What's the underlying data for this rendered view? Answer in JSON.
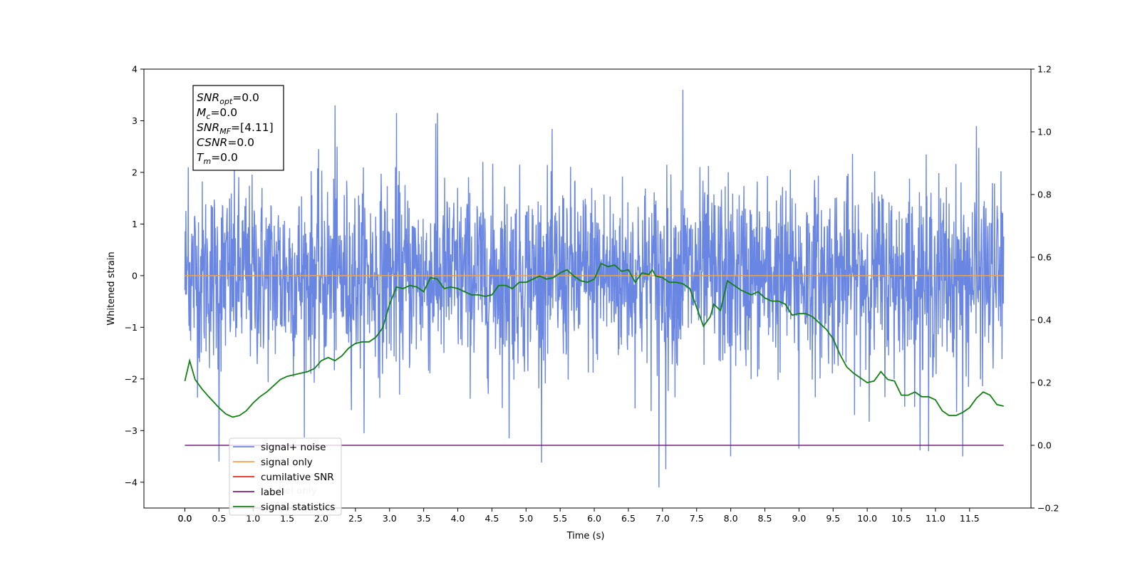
{
  "chart_data": {
    "type": "line",
    "xlabel": "Time (s)",
    "ylabel": "Whitened strain",
    "xlim": [
      -0.6,
      12.4
    ],
    "ylim": [
      -4.5,
      4.0
    ],
    "y2lim": [
      -0.2,
      1.2
    ],
    "grid": false,
    "legend_position": "lower-left",
    "x_ticks": [
      "0.0",
      "0.0",
      "0.5",
      "1.0",
      "1.5",
      "2.0",
      "2.5",
      "3.0",
      "3.5",
      "4.0",
      "4.5",
      "5.0",
      "5.5",
      "6.0",
      "6.5",
      "7.0",
      "7.5",
      "8.0",
      "8.5",
      "9.0",
      "9.5",
      "10.0",
      "10.5",
      "11.0",
      "11.5"
    ],
    "x_tick_values": [
      -0.0001,
      0.0,
      0.5,
      1.0,
      1.5,
      2.0,
      2.5,
      3.0,
      3.5,
      4.0,
      4.5,
      5.0,
      5.5,
      6.0,
      6.5,
      7.0,
      7.5,
      8.0,
      8.5,
      9.0,
      9.5,
      10.0,
      10.5,
      11.0,
      11.5
    ],
    "y_ticks": [
      "4",
      "3",
      "2",
      "1",
      "0",
      "−1",
      "−2",
      "−3",
      "−4"
    ],
    "y_tick_values": [
      4,
      3,
      2,
      1,
      0,
      -1,
      -2,
      -3,
      -4
    ],
    "y2_ticks": [
      "1.2",
      "1.0",
      "0.8",
      "0.6",
      "0.4",
      "0.2",
      "0.0",
      "−0.2"
    ],
    "y2_tick_values": [
      1.2,
      1.0,
      0.8,
      0.6,
      0.4,
      0.2,
      0.0,
      -0.2
    ],
    "annotations": [
      {
        "main": "SNR",
        "sub": "opt",
        "rest": "=0.0"
      },
      {
        "main": "M",
        "sub": "c",
        "rest": "=0.0"
      },
      {
        "main": "SNR",
        "sub": "MF",
        "rest": "=[4.11]"
      },
      {
        "main": "CSNR",
        "sub": "",
        "rest": "=0.0"
      },
      {
        "main": "T",
        "sub": "m",
        "rest": "=0.0"
      }
    ],
    "legend_items": [
      "signal+ noise",
      "signal only",
      "cumilative SNR",
      "label",
      "signal statistics"
    ],
    "legend_ghost": [
      "label only",
      "SNR"
    ],
    "series": [
      {
        "name": "signal+ noise",
        "color": "#6a86e3",
        "axis": "left",
        "x_range": [
          0.0,
          12.0
        ],
        "sample_count": 2400,
        "amplitude_range": [
          -4.1,
          3.6
        ],
        "peaks": [
          {
            "x": 0.05,
            "y": 2.1
          },
          {
            "x": 0.5,
            "y": -3.6
          },
          {
            "x": 2.2,
            "y": 3.3
          },
          {
            "x": 3.1,
            "y": 3.15
          },
          {
            "x": 3.7,
            "y": 3.15
          },
          {
            "x": 4.75,
            "y": -3.15
          },
          {
            "x": 6.95,
            "y": -4.1
          },
          {
            "x": 7.05,
            "y": -3.75
          },
          {
            "x": 7.3,
            "y": 3.6
          },
          {
            "x": 8.0,
            "y": -3.5
          },
          {
            "x": 9.0,
            "y": -3.35
          },
          {
            "x": 10.9,
            "y": -3.4
          },
          {
            "x": 11.4,
            "y": -3.5
          },
          {
            "x": 11.6,
            "y": 2.9
          }
        ]
      },
      {
        "name": "signal only",
        "color": "#f5a04a",
        "axis": "left",
        "x": [
          0.0,
          12.0
        ],
        "y": [
          0.0,
          0.0
        ]
      },
      {
        "name": "label",
        "color": "#7b1d7e",
        "axis": "right",
        "x": [
          0.0,
          12.0
        ],
        "y": [
          0.0,
          0.0
        ]
      },
      {
        "name": "signal statistics",
        "color": "#128012",
        "axis": "right",
        "x": [
          0.0,
          0.07,
          0.15,
          0.25,
          0.35,
          0.5,
          0.6,
          0.7,
          0.8,
          0.9,
          1.0,
          1.1,
          1.2,
          1.3,
          1.4,
          1.5,
          1.6,
          1.7,
          1.8,
          1.9,
          2.0,
          2.1,
          2.2,
          2.3,
          2.4,
          2.5,
          2.6,
          2.7,
          2.8,
          2.9,
          3.0,
          3.1,
          3.2,
          3.3,
          3.4,
          3.5,
          3.6,
          3.7,
          3.8,
          3.9,
          4.0,
          4.1,
          4.2,
          4.3,
          4.4,
          4.5,
          4.6,
          4.7,
          4.8,
          4.9,
          5.0,
          5.1,
          5.2,
          5.3,
          5.4,
          5.5,
          5.6,
          5.7,
          5.8,
          5.9,
          6.0,
          6.1,
          6.2,
          6.3,
          6.4,
          6.5,
          6.6,
          6.7,
          6.8,
          6.85,
          6.9,
          7.0,
          7.1,
          7.2,
          7.3,
          7.4,
          7.5,
          7.6,
          7.7,
          7.75,
          7.85,
          7.95,
          8.05,
          8.15,
          8.3,
          8.4,
          8.5,
          8.6,
          8.7,
          8.8,
          8.9,
          9.0,
          9.1,
          9.2,
          9.3,
          9.4,
          9.5,
          9.6,
          9.7,
          9.8,
          9.9,
          10.0,
          10.1,
          10.2,
          10.3,
          10.4,
          10.5,
          10.6,
          10.7,
          10.8,
          10.9,
          11.0,
          11.1,
          11.2,
          11.3,
          11.4,
          11.5,
          11.6,
          11.7,
          11.8,
          11.9,
          12.0
        ],
        "y": [
          0.205,
          0.27,
          0.21,
          0.18,
          0.155,
          0.12,
          0.1,
          0.09,
          0.095,
          0.11,
          0.135,
          0.155,
          0.17,
          0.19,
          0.21,
          0.22,
          0.225,
          0.23,
          0.235,
          0.245,
          0.27,
          0.28,
          0.27,
          0.285,
          0.31,
          0.325,
          0.33,
          0.33,
          0.345,
          0.375,
          0.45,
          0.505,
          0.5,
          0.51,
          0.505,
          0.49,
          0.535,
          0.53,
          0.5,
          0.505,
          0.5,
          0.49,
          0.48,
          0.48,
          0.475,
          0.48,
          0.51,
          0.51,
          0.5,
          0.52,
          0.52,
          0.53,
          0.54,
          0.53,
          0.535,
          0.55,
          0.56,
          0.54,
          0.525,
          0.52,
          0.53,
          0.58,
          0.57,
          0.575,
          0.555,
          0.56,
          0.52,
          0.55,
          0.545,
          0.56,
          0.54,
          0.535,
          0.52,
          0.52,
          0.515,
          0.5,
          0.44,
          0.38,
          0.41,
          0.45,
          0.43,
          0.525,
          0.51,
          0.495,
          0.48,
          0.49,
          0.47,
          0.46,
          0.46,
          0.45,
          0.415,
          0.42,
          0.42,
          0.41,
          0.39,
          0.37,
          0.34,
          0.29,
          0.25,
          0.23,
          0.215,
          0.2,
          0.205,
          0.235,
          0.21,
          0.205,
          0.16,
          0.16,
          0.17,
          0.155,
          0.155,
          0.145,
          0.11,
          0.095,
          0.095,
          0.105,
          0.12,
          0.15,
          0.17,
          0.16,
          0.13,
          0.125
        ]
      },
      {
        "name": "cumilative SNR",
        "color": "#e8261b",
        "axis": "right",
        "x": [],
        "y": []
      }
    ]
  }
}
